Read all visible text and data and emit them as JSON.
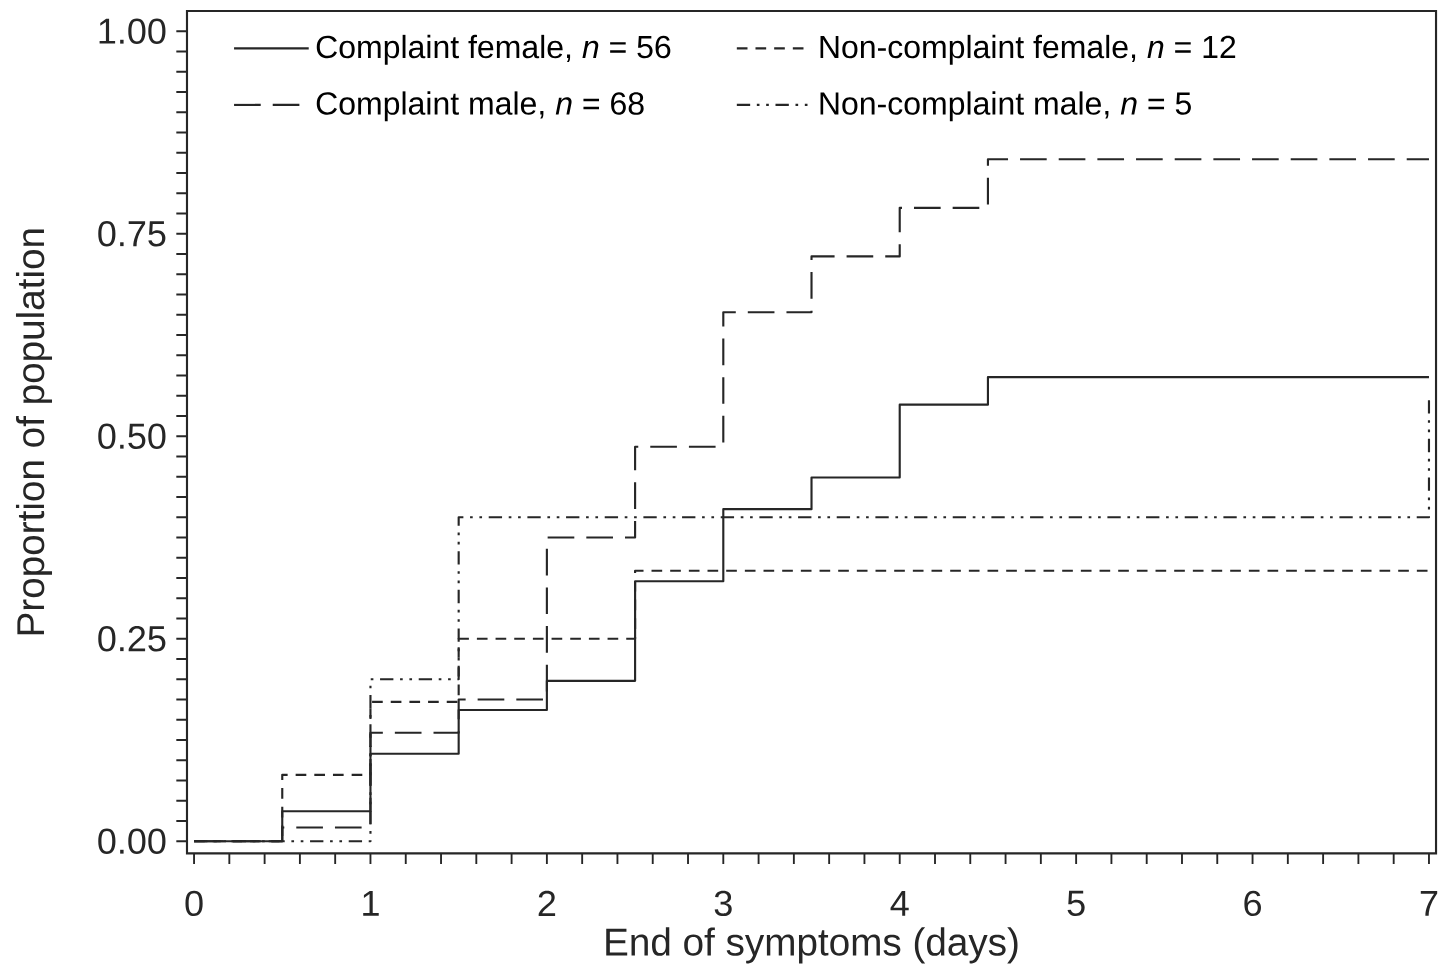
{
  "chart_data": {
    "type": "step",
    "xlabel": "End of symptoms (days)",
    "ylabel": "Proportion of population",
    "xlim": [
      -0.04,
      7.04
    ],
    "ylim": [
      -0.015,
      1.025
    ],
    "xticks": [
      0,
      {
        "value": 0.2,
        "label": null
      },
      {
        "value": 0.4,
        "label": null
      },
      {
        "value": 0.6,
        "label": null
      },
      {
        "value": 0.8,
        "label": null
      },
      1,
      {
        "value": 1.2,
        "label": null
      },
      {
        "value": 1.4,
        "label": null
      },
      {
        "value": 1.6,
        "label": null
      },
      {
        "value": 1.8,
        "label": null
      },
      2,
      {
        "value": 2.2,
        "label": null
      },
      {
        "value": 2.4,
        "label": null
      },
      {
        "value": 2.6,
        "label": null
      },
      {
        "value": 2.8,
        "label": null
      },
      3,
      {
        "value": 3.2,
        "label": null
      },
      {
        "value": 3.4,
        "label": null
      },
      {
        "value": 3.6,
        "label": null
      },
      {
        "value": 3.8,
        "label": null
      },
      4,
      {
        "value": 4.2,
        "label": null
      },
      {
        "value": 4.4,
        "label": null
      },
      {
        "value": 4.6,
        "label": null
      },
      {
        "value": 4.8,
        "label": null
      },
      5,
      {
        "value": 5.2,
        "label": null
      },
      {
        "value": 5.4,
        "label": null
      },
      {
        "value": 5.6,
        "label": null
      },
      {
        "value": 5.8,
        "label": null
      },
      6,
      {
        "value": 6.2,
        "label": null
      },
      {
        "value": 6.4,
        "label": null
      },
      {
        "value": 6.6,
        "label": null
      },
      {
        "value": 6.8,
        "label": null
      },
      7
    ],
    "yticks": [
      {
        "value": 0,
        "label": "0.00"
      },
      {
        "value": 0.025,
        "label": null
      },
      {
        "value": 0.05,
        "label": null
      },
      {
        "value": 0.075,
        "label": null
      },
      {
        "value": 0.1,
        "label": null
      },
      {
        "value": 0.125,
        "label": null
      },
      {
        "value": 0.15,
        "label": null
      },
      {
        "value": 0.175,
        "label": null
      },
      {
        "value": 0.2,
        "label": null
      },
      {
        "value": 0.225,
        "label": null
      },
      {
        "value": 0.25,
        "label": "0.25"
      },
      {
        "value": 0.275,
        "label": null
      },
      {
        "value": 0.3,
        "label": null
      },
      {
        "value": 0.325,
        "label": null
      },
      {
        "value": 0.35,
        "label": null
      },
      {
        "value": 0.375,
        "label": null
      },
      {
        "value": 0.4,
        "label": null
      },
      {
        "value": 0.425,
        "label": null
      },
      {
        "value": 0.45,
        "label": null
      },
      {
        "value": 0.475,
        "label": null
      },
      {
        "value": 0.5,
        "label": "0.50"
      },
      {
        "value": 0.525,
        "label": null
      },
      {
        "value": 0.55,
        "label": null
      },
      {
        "value": 0.575,
        "label": null
      },
      {
        "value": 0.6,
        "label": null
      },
      {
        "value": 0.625,
        "label": null
      },
      {
        "value": 0.65,
        "label": null
      },
      {
        "value": 0.675,
        "label": null
      },
      {
        "value": 0.7,
        "label": null
      },
      {
        "value": 0.725,
        "label": null
      },
      {
        "value": 0.75,
        "label": "0.75"
      },
      {
        "value": 0.775,
        "label": null
      },
      {
        "value": 0.8,
        "label": null
      },
      {
        "value": 0.825,
        "label": null
      },
      {
        "value": 0.85,
        "label": null
      },
      {
        "value": 0.875,
        "label": null
      },
      {
        "value": 0.9,
        "label": null
      },
      {
        "value": 0.925,
        "label": null
      },
      {
        "value": 0.95,
        "label": null
      },
      {
        "value": 0.975,
        "label": null
      },
      {
        "value": 1,
        "label": "1.00"
      }
    ],
    "legend": "top left",
    "series": [
      {
        "name": "Complaint female, *n* = 56",
        "color": "#262626",
        "line_style": "solid",
        "x": [
          0,
          0.5,
          1,
          1.5,
          2,
          2.5,
          3,
          3.5,
          4,
          4.5,
          7
        ],
        "values": [
          0,
          0.037,
          0.108,
          0.162,
          0.198,
          0.321,
          0.41,
          0.449,
          0.539,
          0.573,
          0.573
        ]
      },
      {
        "name": "Complaint male, *n* = 68",
        "color": "#262626",
        "line_style": "long dashed",
        "x": [
          0,
          0.5,
          1,
          1.5,
          2,
          2.5,
          3,
          3.5,
          4,
          4.5,
          7
        ],
        "values": [
          0,
          0.017,
          0.134,
          0.175,
          0.375,
          0.487,
          0.653,
          0.722,
          0.782,
          0.842,
          0.842
        ]
      },
      {
        "name": "Non-complaint female, *n* = 12",
        "color": "#262626",
        "line_style": "dashed",
        "x": [
          0,
          0.5,
          1,
          1.5,
          2.5,
          7
        ],
        "values": [
          0,
          0.082,
          0.172,
          0.25,
          0.334,
          0.334
        ]
      },
      {
        "name": "Non-complaint male, *n* = 5",
        "color": "#262626",
        "line_style": "dash dot dot",
        "x": [
          0,
          1,
          1.5,
          7
        ],
        "values": [
          0,
          0.2,
          0.4,
          0.55
        ]
      }
    ]
  }
}
